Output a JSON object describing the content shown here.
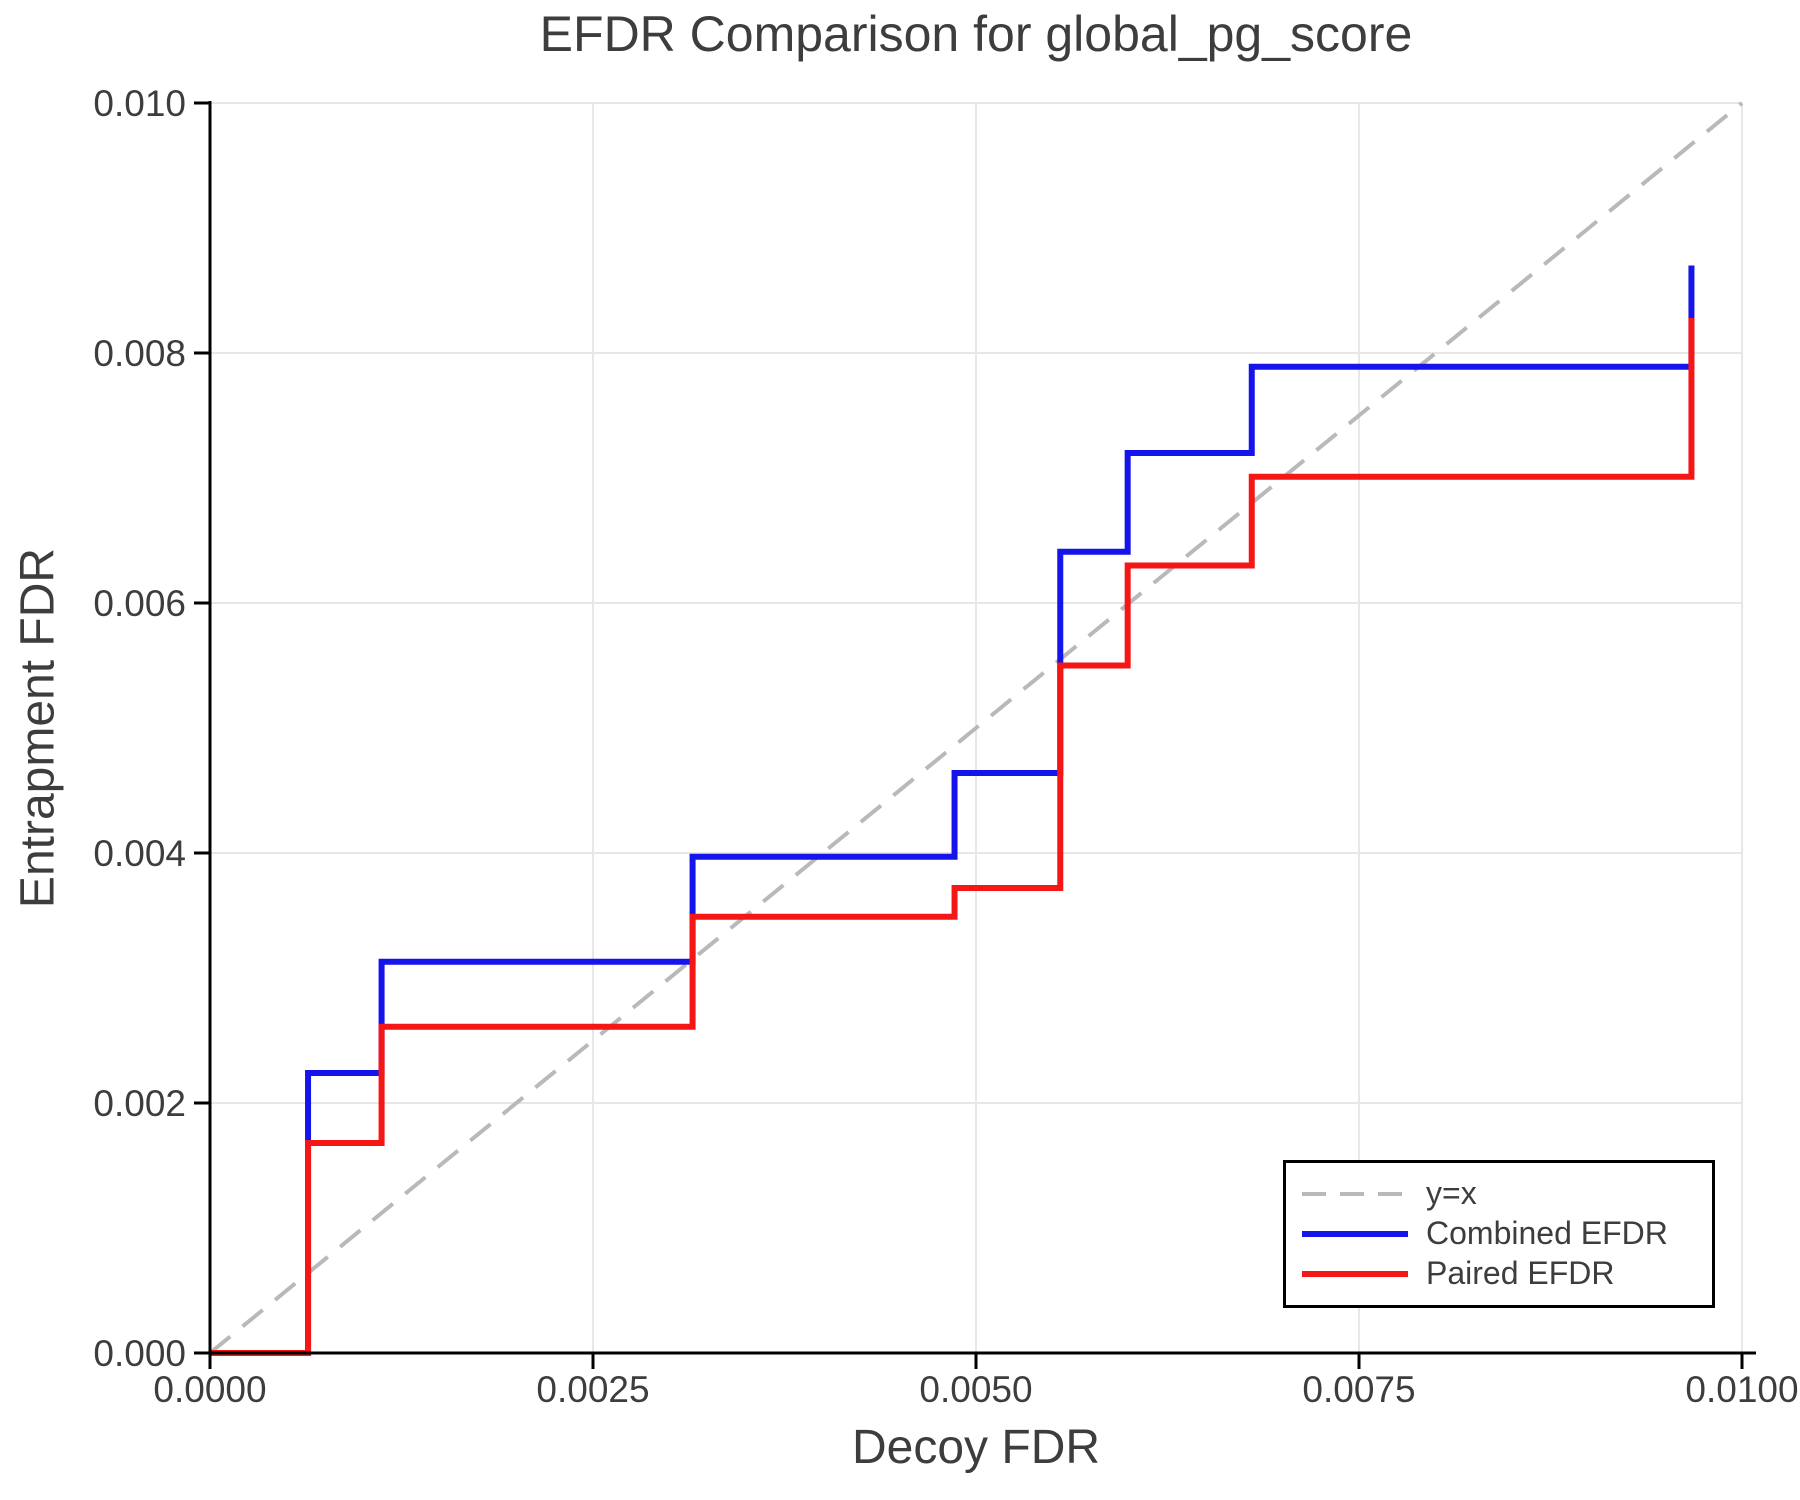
{
  "figure": {
    "background": "#ffffff",
    "text_color": "#3d3d3d",
    "grid_color": "#e7e7e7",
    "spine_color": "#000000"
  },
  "chart_data": {
    "type": "line",
    "subtype": "step",
    "step_where": "post",
    "title": "EFDR Comparison for global_pg_score",
    "xlabel": "Decoy FDR",
    "ylabel": "Entrapment FDR",
    "xlim": [
      0.0,
      0.01
    ],
    "ylim": [
      0.0,
      0.01
    ],
    "grid": true,
    "legend_position": "lower right",
    "x_tick_values": [
      0.0,
      0.0025,
      0.005,
      0.0075,
      0.01
    ],
    "x_tick_labels": [
      "0.0000",
      "0.0025",
      "0.0050",
      "0.0075",
      "0.0100"
    ],
    "y_tick_values": [
      0.0,
      0.002,
      0.004,
      0.006,
      0.008,
      0.01
    ],
    "y_tick_labels": [
      "0.000",
      "0.002",
      "0.004",
      "0.006",
      "0.008",
      "0.010"
    ],
    "series": [
      {
        "name": "y=x",
        "kind": "reference-line",
        "style": "dashed",
        "color": "#b9b9b9",
        "x": [
          0.0,
          0.01
        ],
        "y": [
          0.0,
          0.01
        ]
      },
      {
        "name": "Combined EFDR",
        "kind": "step",
        "style": "solid",
        "color": "#1414eb",
        "x": [
          0.0,
          0.00064,
          0.00112,
          0.00315,
          0.00486,
          0.00555,
          0.00599,
          0.0068,
          0.00967
        ],
        "y": [
          0.0,
          0.00224,
          0.00313,
          0.00397,
          0.00464,
          0.00641,
          0.0072,
          0.00789,
          0.0087
        ]
      },
      {
        "name": "Paired EFDR",
        "kind": "step",
        "style": "solid",
        "color": "#f51616",
        "x": [
          0.0,
          0.00064,
          0.00112,
          0.00315,
          0.00486,
          0.00555,
          0.00599,
          0.0068,
          0.00967
        ],
        "y": [
          0.0,
          0.00168,
          0.00261,
          0.00349,
          0.00372,
          0.0055,
          0.0063,
          0.00701,
          0.00828
        ]
      }
    ]
  }
}
